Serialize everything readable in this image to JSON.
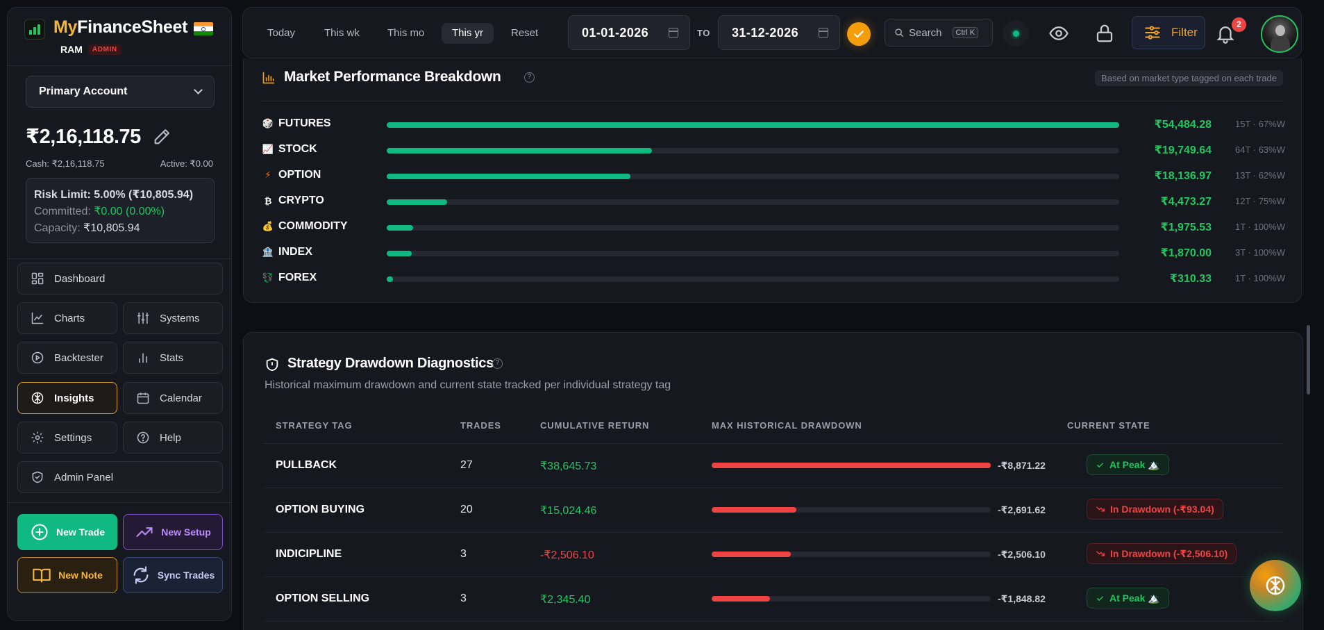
{
  "brand": {
    "name_prefix": "My",
    "name_main": "FinanceSheet",
    "user": "RAM",
    "role_badge": "ADMIN"
  },
  "account": {
    "selected": "Primary Account",
    "balance": "₹2,16,118.75",
    "cash": "Cash: ₹2,16,118.75",
    "active": "Active: ₹0.00",
    "risk_limit": "Risk Limit: 5.00% (₹10,805.94)",
    "committed_label": "Committed: ",
    "committed_value": "₹0.00 (0.00%)",
    "capacity_label": "Capacity: ",
    "capacity_value": "₹10,805.94"
  },
  "nav": {
    "dashboard": "Dashboard",
    "charts": "Charts",
    "systems": "Systems",
    "backtester": "Backtester",
    "stats": "Stats",
    "insights": "Insights",
    "calendar": "Calendar",
    "settings": "Settings",
    "help": "Help",
    "admin_panel": "Admin Panel",
    "active_item": "Insights"
  },
  "actions": {
    "new_trade": "New Trade",
    "new_setup": "New Setup",
    "new_note": "New Note",
    "sync_trades": "Sync Trades"
  },
  "topbar": {
    "periods": [
      "Today",
      "This wk",
      "This mo",
      "This yr",
      "Reset"
    ],
    "selected_period": "This yr",
    "date_from": "01-01-2026",
    "to_label": "TO",
    "date_to": "31-12-2026",
    "search_label": "Search",
    "search_shortcut": "Ctrl K",
    "filter_label": "Filter",
    "notification_count": "2",
    "colors": {
      "accent": "#f59e0b",
      "status": "#10b981"
    }
  },
  "market": {
    "title": "Market Performance Breakdown",
    "hint": "Based on market type tagged on each trade",
    "rows": [
      {
        "name": "FUTURES",
        "icon": "futures-icon",
        "value": "₹54,484.28",
        "meta": "15T · 67%W",
        "share": 1.0
      },
      {
        "name": "STOCK",
        "icon": "stock-chart-icon",
        "value": "₹19,749.64",
        "meta": "64T · 63%W",
        "share": 0.3625
      },
      {
        "name": "OPTION",
        "icon": "lightning-icon",
        "value": "₹18,136.97",
        "meta": "13T · 62%W",
        "share": 0.3329
      },
      {
        "name": "CRYPTO",
        "icon": "bitcoin-icon",
        "value": "₹4,473.27",
        "meta": "12T · 75%W",
        "share": 0.0821
      },
      {
        "name": "COMMODITY",
        "icon": "gold-icon",
        "value": "₹1,975.53",
        "meta": "1T · 100%W",
        "share": 0.0363
      },
      {
        "name": "INDEX",
        "icon": "bank-icon",
        "value": "₹1,870.00",
        "meta": "3T · 100%W",
        "share": 0.0343
      },
      {
        "name": "FOREX",
        "icon": "currency-exchange-icon",
        "value": "₹310.33",
        "meta": "1T · 100%W",
        "share": 0.0057
      }
    ]
  },
  "strategy": {
    "title": "Strategy Drawdown Diagnostics",
    "subtitle": "Historical maximum drawdown and current state tracked per individual strategy tag",
    "columns": [
      "STRATEGY TAG",
      "TRADES",
      "CUMULATIVE RETURN",
      "MAX HISTORICAL DRAWDOWN",
      "CURRENT STATE"
    ],
    "rows": [
      {
        "tag": "PULLBACK",
        "trades": "27",
        "cumulative": "₹38,645.73",
        "cum_positive": true,
        "max_dd": "-₹8,871.22",
        "dd_share": 1.0,
        "state": "At Peak 🏔️",
        "state_type": "peak"
      },
      {
        "tag": "OPTION BUYING",
        "trades": "20",
        "cumulative": "₹15,024.46",
        "cum_positive": true,
        "max_dd": "-₹2,691.62",
        "dd_share": 0.303,
        "state": "In Drawdown (-₹93.04)",
        "state_type": "drawdown"
      },
      {
        "tag": "INDICIPLINE",
        "trades": "3",
        "cumulative": "-₹2,506.10",
        "cum_positive": false,
        "max_dd": "-₹2,506.10",
        "dd_share": 0.2825,
        "state": "In Drawdown (-₹2,506.10)",
        "state_type": "drawdown"
      },
      {
        "tag": "OPTION SELLING",
        "trades": "3",
        "cumulative": "₹2,345.40",
        "cum_positive": true,
        "max_dd": "-₹1,848.82",
        "dd_share": 0.2084,
        "state": "At Peak 🏔️",
        "state_type": "peak"
      }
    ]
  }
}
